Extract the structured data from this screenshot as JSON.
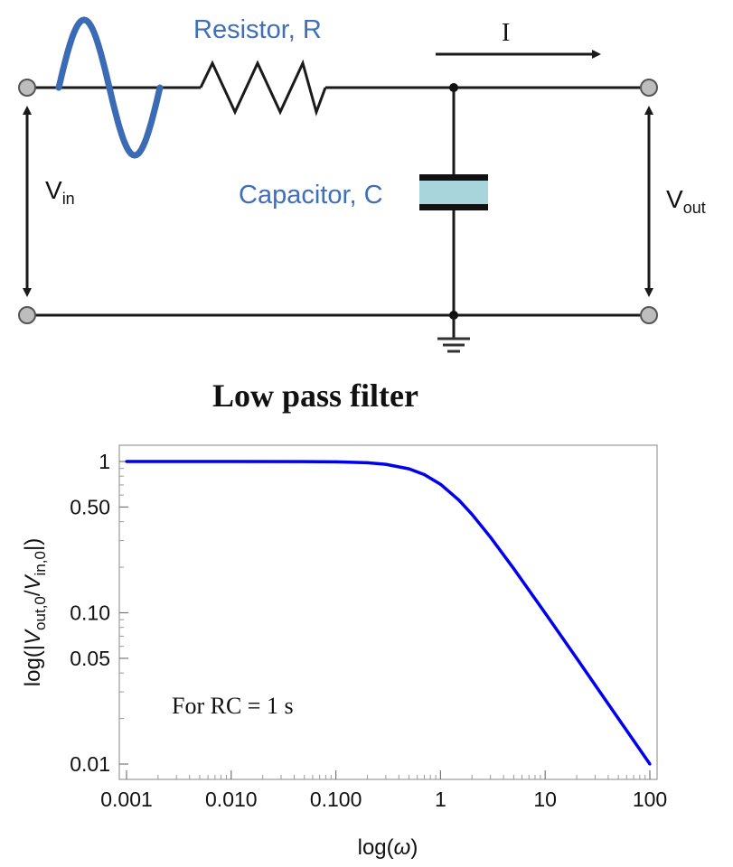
{
  "circuit": {
    "resistor_label": "Resistor, R",
    "capacitor_label": "Capacitor, C",
    "current_label": "I",
    "vin_main": "V",
    "vin_sub": "in",
    "vout_main": "V",
    "vout_sub": "out",
    "caption": "Low pass filter"
  },
  "colors": {
    "sine": "#3c6bb5",
    "label_blue": "#3f6fb8",
    "capacitor_fill": "#a8d4dc",
    "curve": "#0000ee",
    "wire": "#1a1a1a",
    "terminal": "#bdbdbd"
  },
  "chart_data": {
    "type": "line",
    "xscale": "log",
    "yscale": "log",
    "xlim": [
      0.001,
      100
    ],
    "ylim": [
      0.008,
      1.2
    ],
    "xticks": [
      0.001,
      0.01,
      0.1,
      1,
      10,
      100
    ],
    "xtick_labels": [
      "0.001",
      "0.010",
      "0.100",
      "1",
      "10",
      "100"
    ],
    "yticks": [
      1,
      0.5,
      0.1,
      0.05,
      0.01
    ],
    "ytick_labels": [
      "1",
      "0.50",
      "0.10",
      "0.05",
      "0.01"
    ],
    "xlabel_prefix": "log(",
    "xlabel_symbol": "ω",
    "xlabel_suffix": ")",
    "ylabel": {
      "p1": "log(|",
      "v1": "V",
      "s1": "out,0",
      "p2": "/",
      "v2": "V",
      "s2": "in,0",
      "p3": "|)"
    },
    "annotation": "For RC = 1 s",
    "grid": false,
    "series": [
      {
        "x": [
          0.001,
          0.01,
          0.05,
          0.1,
          0.2,
          0.3,
          0.5,
          0.7,
          1,
          1.5,
          2,
          3,
          5,
          7,
          10,
          20,
          30,
          50,
          70,
          100
        ],
        "values": [
          1.0,
          1.0,
          0.999,
          0.995,
          0.981,
          0.958,
          0.894,
          0.819,
          0.707,
          0.555,
          0.447,
          0.316,
          0.196,
          0.141,
          0.0995,
          0.05,
          0.0333,
          0.02,
          0.0143,
          0.01
        ]
      }
    ]
  }
}
